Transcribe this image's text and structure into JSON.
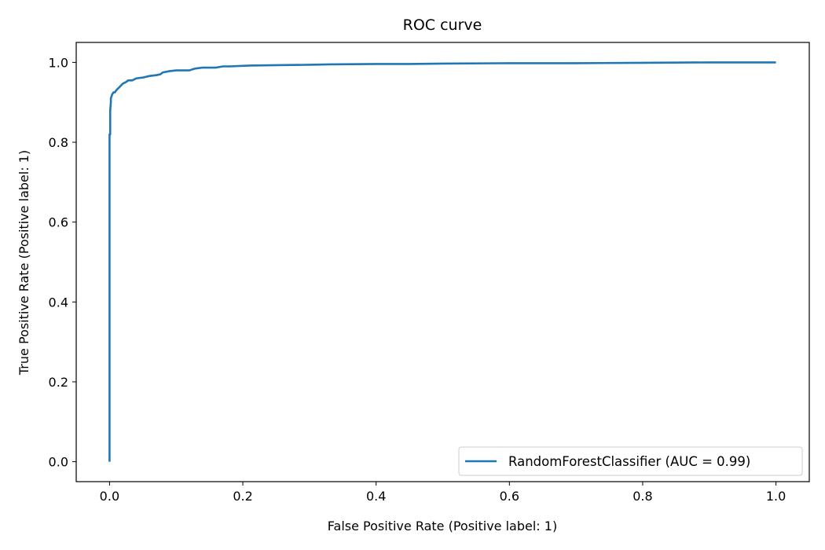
{
  "chart_data": {
    "type": "line",
    "title": "ROC curve",
    "xlabel": "False Positive Rate (Positive label: 1)",
    "ylabel": "True Positive Rate (Positive label: 1)",
    "xlim": [
      -0.05,
      1.05
    ],
    "ylim": [
      -0.05,
      1.05
    ],
    "xticks": [
      0.0,
      0.2,
      0.4,
      0.6,
      0.8,
      1.0
    ],
    "yticks": [
      0.0,
      0.2,
      0.4,
      0.6,
      0.8,
      1.0
    ],
    "xtick_labels": [
      "0.0",
      "0.2",
      "0.4",
      "0.6",
      "0.8",
      "1.0"
    ],
    "ytick_labels": [
      "0.0",
      "0.2",
      "0.4",
      "0.6",
      "0.8",
      "1.0"
    ],
    "grid": false,
    "legend_position": "lower-right",
    "series": [
      {
        "name": "RandomForestClassifier (AUC = 0.99)",
        "color": "#1f77b4",
        "x": [
          0.0,
          0.0,
          0.001,
          0.001,
          0.002,
          0.002,
          0.004,
          0.006,
          0.008,
          0.01,
          0.013,
          0.016,
          0.02,
          0.024,
          0.028,
          0.034,
          0.04,
          0.05,
          0.06,
          0.07,
          0.076,
          0.08,
          0.09,
          0.1,
          0.12,
          0.125,
          0.13,
          0.14,
          0.16,
          0.17,
          0.18,
          0.21,
          0.25,
          0.3,
          0.33,
          0.4,
          0.45,
          0.5,
          0.6,
          0.7,
          0.8,
          0.9,
          1.0
        ],
        "y": [
          0.0,
          0.82,
          0.82,
          0.88,
          0.9,
          0.91,
          0.92,
          0.925,
          0.925,
          0.93,
          0.935,
          0.94,
          0.947,
          0.95,
          0.955,
          0.955,
          0.96,
          0.962,
          0.966,
          0.968,
          0.97,
          0.975,
          0.978,
          0.98,
          0.98,
          0.983,
          0.985,
          0.987,
          0.987,
          0.99,
          0.99,
          0.992,
          0.993,
          0.994,
          0.995,
          0.996,
          0.996,
          0.997,
          0.998,
          0.998,
          0.999,
          1.0,
          1.0
        ]
      }
    ]
  }
}
